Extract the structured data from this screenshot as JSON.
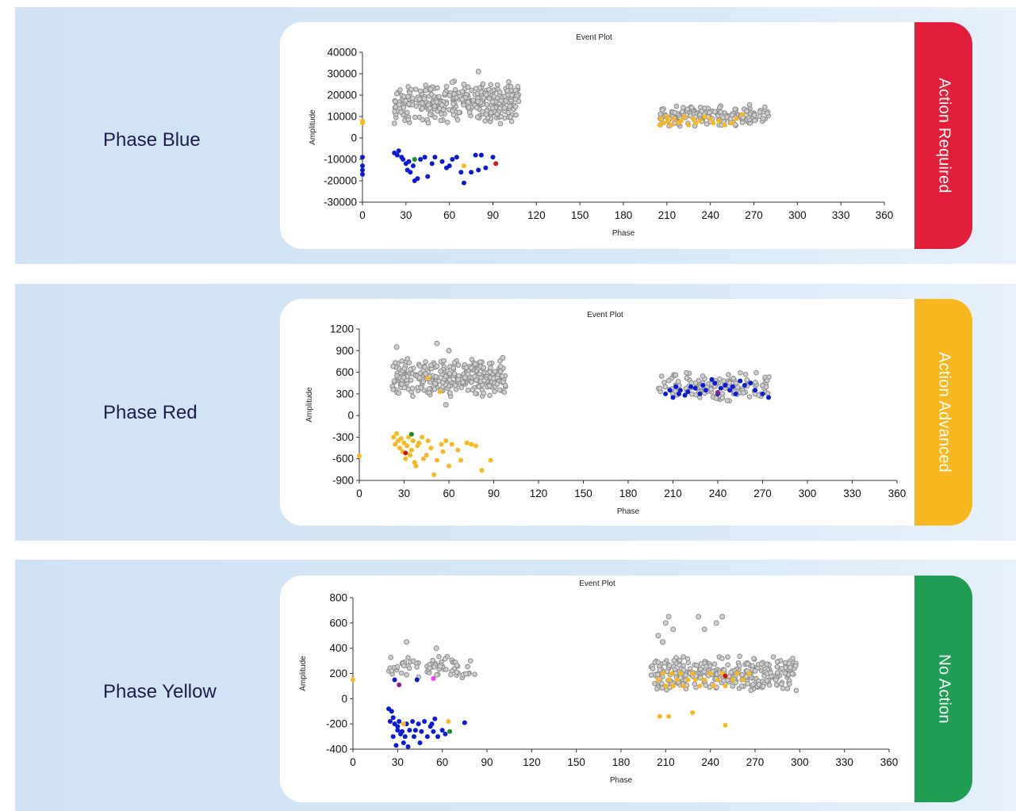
{
  "rows": [
    {
      "phase_label": "Phase Blue",
      "status": {
        "label": "Action Required",
        "color": "#e21e3a"
      }
    },
    {
      "phase_label": "Phase Red",
      "status": {
        "label": "Action Advanced",
        "color": "#f9b820"
      }
    },
    {
      "phase_label": "Phase Yellow",
      "status": {
        "label": "No Action",
        "color": "#1f9e54"
      }
    }
  ],
  "point_colors": {
    "gray": "#8c8c8c",
    "blue": "#0a1ad6",
    "yellow": "#f9b820",
    "green": "#1b8a2a",
    "red": "#d8130f",
    "magenta": "#ff33ff",
    "purple": "#8a1f86"
  },
  "chart_data": [
    {
      "type": "scatter",
      "title": "Event Plot",
      "xlabel": "Phase",
      "ylabel": "Amplitude",
      "xlim": [
        0,
        360
      ],
      "ylim": [
        -30000,
        40000
      ],
      "xticks": [
        0,
        30,
        60,
        90,
        120,
        150,
        180,
        210,
        240,
        270,
        300,
        330,
        360
      ],
      "xtick_labels": [
        "0",
        "30",
        "60",
        "90",
        "120",
        "150",
        "180",
        "210",
        "240",
        "270",
        "300",
        "330",
        "360"
      ],
      "yticks": [
        40000,
        30000,
        20000,
        10000,
        0,
        -10000,
        -20000,
        -30000
      ],
      "ytick_labels": [
        "40000",
        "30000",
        "20000",
        "10000",
        "0",
        "-10000",
        "-20000",
        "-30000"
      ],
      "clusters": [
        {
          "color": "gray",
          "x": [
            22,
            108
          ],
          "y": [
            6000,
            27000
          ],
          "count": 360
        },
        {
          "color": "gray",
          "x": [
            205,
            280
          ],
          "y": [
            5000,
            16000
          ],
          "count": 170
        }
      ],
      "points": [
        {
          "color": "gray",
          "x": [
            80,
            62,
            70,
            58
          ],
          "y": [
            31000,
            26000,
            25000,
            24000
          ]
        },
        {
          "color": "yellow",
          "x": [
            0,
            0,
            205,
            206,
            208,
            210,
            211,
            213,
            215,
            218,
            220,
            222,
            225,
            228,
            230,
            233,
            236,
            240,
            242,
            246,
            250,
            255,
            258,
            262
          ],
          "y": [
            7000,
            8000,
            6000,
            9000,
            7000,
            10000,
            8000,
            6000,
            9000,
            7000,
            8000,
            10000,
            6000,
            9000,
            7000,
            8000,
            10000,
            9000,
            7000,
            8000,
            6000,
            7000,
            9000,
            11000
          ]
        },
        {
          "color": "blue",
          "x": [
            0,
            0,
            0,
            0,
            22,
            24,
            25,
            27,
            28,
            30,
            31,
            32,
            33,
            35,
            36,
            38,
            40,
            43,
            45,
            48,
            50,
            55,
            58,
            60,
            62,
            65,
            68,
            70,
            75,
            78,
            80,
            82,
            85,
            90
          ],
          "y": [
            -9000,
            -13000,
            -15000,
            -17000,
            -7000,
            -8000,
            -6000,
            -9000,
            -10000,
            -12000,
            -15000,
            -11000,
            -16000,
            -13000,
            -20000,
            -19000,
            -10000,
            -9000,
            -18000,
            -12000,
            -9000,
            -11000,
            -14000,
            -13000,
            -10000,
            -9000,
            -16000,
            -21000,
            -16000,
            -8000,
            -15000,
            -8000,
            -14000,
            -9000
          ]
        },
        {
          "color": "green",
          "x": [
            36
          ],
          "y": [
            -10000
          ]
        },
        {
          "color": "yellow",
          "x": [
            70
          ],
          "y": [
            -13000
          ]
        },
        {
          "color": "red",
          "x": [
            92
          ],
          "y": [
            -12000
          ]
        }
      ]
    },
    {
      "type": "scatter",
      "title": "Event Plot",
      "xlabel": "Phase",
      "ylabel": "Amplitude",
      "xlim": [
        0,
        360
      ],
      "ylim": [
        -900,
        1200
      ],
      "xticks": [
        0,
        30,
        60,
        90,
        120,
        150,
        180,
        210,
        240,
        270,
        300,
        330,
        360
      ],
      "xtick_labels": [
        "0",
        "30",
        "60",
        "90",
        "120",
        "150",
        "180",
        "210",
        "240",
        "270",
        "300",
        "330",
        "360"
      ],
      "yticks": [
        1200,
        900,
        600,
        300,
        0,
        -300,
        -600,
        -900
      ],
      "ytick_labels": [
        "1200",
        "900",
        "600",
        "300",
        "0",
        "-300",
        "-600",
        "-900"
      ],
      "clusters": [
        {
          "color": "gray",
          "x": [
            22,
            98
          ],
          "y": [
            250,
            800
          ],
          "count": 330
        },
        {
          "color": "gray",
          "x": [
            200,
            275
          ],
          "y": [
            180,
            620
          ],
          "count": 130
        }
      ],
      "points": [
        {
          "color": "gray",
          "x": [
            25,
            52,
            60,
            96,
            58
          ],
          "y": [
            950,
            1000,
            900,
            800,
            150
          ]
        },
        {
          "color": "blue",
          "x": [
            205,
            208,
            210,
            212,
            214,
            215,
            218,
            220,
            222,
            225,
            228,
            230,
            232,
            236,
            238,
            240,
            242,
            245,
            248,
            250,
            252,
            255,
            258,
            262,
            265,
            270,
            274
          ],
          "y": [
            300,
            350,
            250,
            400,
            300,
            350,
            280,
            330,
            400,
            380,
            300,
            420,
            350,
            500,
            450,
            300,
            380,
            420,
            350,
            400,
            300,
            480,
            420,
            450,
            350,
            300,
            250
          ]
        },
        {
          "color": "purple",
          "x": [
            240
          ],
          "y": [
            320
          ]
        },
        {
          "color": "yellow",
          "x": [
            46,
            54
          ],
          "y": [
            520,
            330
          ]
        },
        {
          "color": "yellow",
          "x": [
            0,
            23,
            24,
            25,
            26,
            27,
            28,
            29,
            30,
            31,
            32,
            33,
            34,
            35,
            36,
            37,
            38,
            39,
            40,
            42,
            43,
            45,
            46,
            48,
            50,
            52,
            55,
            56,
            58,
            60,
            62,
            66,
            68,
            72,
            75,
            78,
            82,
            88
          ],
          "y": [
            -560,
            -300,
            -400,
            -250,
            -350,
            -450,
            -320,
            -500,
            -380,
            -600,
            -420,
            -300,
            -550,
            -480,
            -350,
            -650,
            -700,
            -420,
            -380,
            -300,
            -600,
            -550,
            -350,
            -450,
            -820,
            -620,
            -400,
            -500,
            -350,
            -700,
            -400,
            -480,
            -620,
            -380,
            -400,
            -420,
            -760,
            -620
          ]
        },
        {
          "color": "green",
          "x": [
            35
          ],
          "y": [
            -260
          ]
        },
        {
          "color": "red",
          "x": [
            31
          ],
          "y": [
            -520
          ]
        }
      ]
    },
    {
      "type": "scatter",
      "title": "Event Plot",
      "xlabel": "Phase",
      "ylabel": "Amplitude",
      "xlim": [
        0,
        360
      ],
      "ylim": [
        -400,
        800
      ],
      "xticks": [
        0,
        30,
        60,
        90,
        120,
        150,
        180,
        210,
        240,
        270,
        300,
        330,
        360
      ],
      "xtick_labels": [
        "0",
        "30",
        "60",
        "90",
        "120",
        "150",
        "180",
        "210",
        "240",
        "270",
        "300",
        "330",
        "360"
      ],
      "yticks": [
        800,
        600,
        400,
        200,
        0,
        -200,
        -400
      ],
      "ytick_labels": [
        "800",
        "600",
        "400",
        "200",
        "0",
        "-200",
        "-400"
      ],
      "clusters": [
        {
          "color": "gray",
          "x": [
            24,
            82
          ],
          "y": [
            150,
            350
          ],
          "count": 70
        },
        {
          "color": "gray",
          "x": [
            200,
            298
          ],
          "y": [
            50,
            350
          ],
          "count": 300
        }
      ],
      "points": [
        {
          "color": "gray",
          "x": [
            36,
            56,
            205,
            208,
            210,
            212,
            208,
            232,
            248,
            215,
            236,
            244
          ],
          "y": [
            450,
            400,
            500,
            450,
            600,
            650,
            450,
            650,
            650,
            550,
            550,
            600
          ]
        },
        {
          "color": "yellow",
          "x": [
            0,
            205,
            208,
            210,
            212,
            214,
            215,
            218,
            220,
            222,
            225,
            228,
            230,
            233,
            236,
            240,
            242,
            245,
            248,
            250,
            255,
            258,
            262,
            266
          ],
          "y": [
            150,
            150,
            200,
            100,
            150,
            200,
            100,
            150,
            200,
            100,
            150,
            200,
            150,
            100,
            150,
            200,
            100,
            150,
            200,
            100,
            150,
            200,
            150,
            200
          ]
        },
        {
          "color": "red",
          "x": [
            250
          ],
          "y": [
            180
          ]
        },
        {
          "color": "yellow",
          "x": [
            206,
            212,
            228,
            250
          ],
          "y": [
            -140,
            -140,
            -110,
            -210
          ]
        },
        {
          "color": "magenta",
          "x": [
            54
          ],
          "y": [
            160
          ]
        },
        {
          "color": "purple",
          "x": [
            31
          ],
          "y": [
            110
          ]
        },
        {
          "color": "blue",
          "x": [
            26,
            27,
            28,
            30,
            32,
            24,
            25,
            27,
            29,
            30,
            31,
            33,
            34,
            35,
            36,
            37,
            38,
            40,
            41,
            42,
            44,
            45,
            46,
            48,
            50,
            52,
            53,
            54,
            55,
            57,
            60,
            62,
            75,
            28,
            43
          ],
          "y": [
            -100,
            -150,
            -200,
            -250,
            -280,
            -80,
            -180,
            -300,
            -370,
            -220,
            -180,
            -260,
            -350,
            -300,
            -200,
            -380,
            -250,
            -180,
            -300,
            -250,
            -200,
            -350,
            -260,
            -180,
            -300,
            -220,
            -200,
            -260,
            -160,
            -300,
            -250,
            -280,
            -190,
            150,
            150
          ]
        },
        {
          "color": "yellow",
          "x": [
            34,
            64
          ],
          "y": [
            -200,
            -180
          ]
        },
        {
          "color": "green",
          "x": [
            65
          ],
          "y": [
            -260
          ]
        }
      ]
    }
  ]
}
